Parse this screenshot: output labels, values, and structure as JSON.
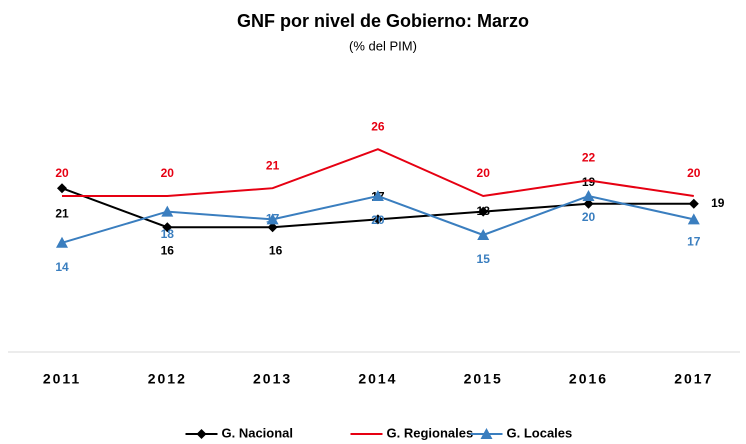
{
  "chart_data": {
    "type": "line",
    "title": "GNF por nivel de Gobierno: Marzo",
    "subtitle": "(% del PIM)",
    "categories": [
      "2011",
      "2012",
      "2013",
      "2014",
      "2015",
      "2016",
      "2017"
    ],
    "ylim": [
      0,
      35
    ],
    "series": [
      {
        "name": "G. Nacional",
        "color": "#000000",
        "marker": "diamond",
        "values": [
          21,
          16,
          16,
          17,
          18,
          19,
          19
        ]
      },
      {
        "name": "G. Regionales",
        "color": "#e60012",
        "marker": "none",
        "values": [
          20,
          20,
          21,
          26,
          20,
          22,
          20
        ]
      },
      {
        "name": "G. Locales",
        "color": "#3a7ebf",
        "marker": "triangle",
        "values": [
          14,
          18,
          17,
          20,
          15,
          20,
          17
        ]
      }
    ]
  }
}
